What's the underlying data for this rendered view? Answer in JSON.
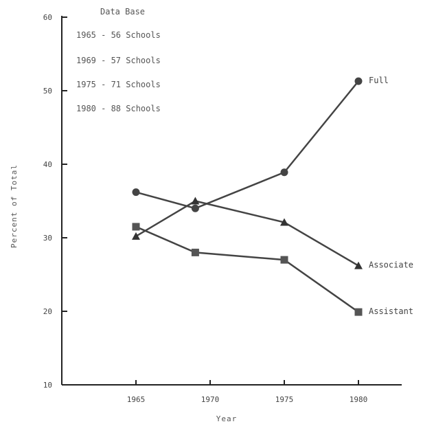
{
  "chart_data": {
    "type": "line",
    "xlabel": "Year",
    "ylabel": "Percent of Total",
    "ylim": [
      10,
      60
    ],
    "xlim": [
      1960,
      1985
    ],
    "x_ticks": [
      "1965",
      "1970",
      "1975",
      "1980"
    ],
    "y_ticks": [
      "10",
      "20",
      "30",
      "40",
      "50",
      "60"
    ],
    "grid": false,
    "legend_placement": "top-left",
    "annotation_title": "Data Base",
    "annotations": [
      "1965 - 56 Schools",
      "1969 - 57 Schools",
      "1975 - 71 Schools",
      "1980 - 88 Schools"
    ],
    "series": [
      {
        "name": "Full",
        "marker": "circle",
        "points": [
          [
            1965,
            36.2
          ],
          [
            1969,
            34.0
          ],
          [
            1975,
            38.9
          ],
          [
            1980,
            51.3
          ]
        ]
      },
      {
        "name": "Associate",
        "marker": "triangle",
        "points": [
          [
            1965,
            30.2
          ],
          [
            1969,
            35.0
          ],
          [
            1975,
            32.1
          ],
          [
            1980,
            26.2
          ]
        ]
      },
      {
        "name": "Assistant",
        "marker": "square",
        "points": [
          [
            1965,
            31.5
          ],
          [
            1969,
            28.0
          ],
          [
            1975,
            27.0
          ],
          [
            1980,
            19.9
          ]
        ]
      }
    ]
  }
}
